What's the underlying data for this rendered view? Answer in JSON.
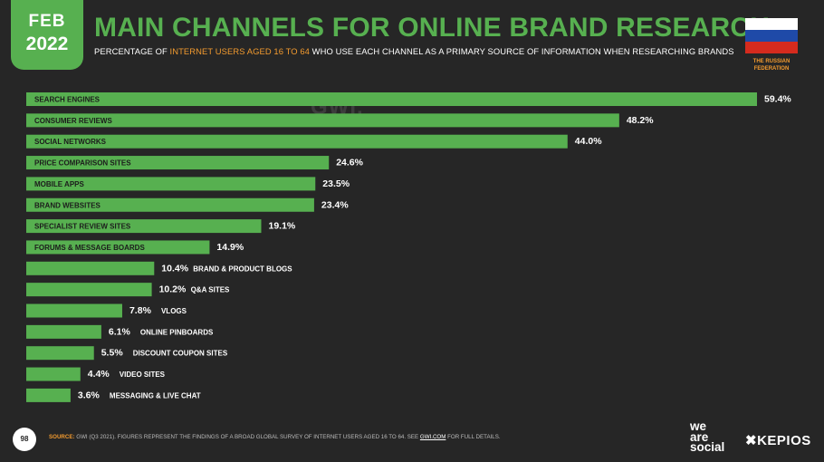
{
  "header": {
    "month": "FEB",
    "year": "2022",
    "title": "MAIN CHANNELS FOR ONLINE BRAND RESEARCH",
    "subtitle_pre": "PERCENTAGE OF ",
    "subtitle_hl": "INTERNET USERS AGED 16 TO 64",
    "subtitle_post": " WHO USE EACH CHANNEL AS A PRIMARY SOURCE OF INFORMATION WHEN RESEARCHING BRANDS"
  },
  "country": {
    "line1": "THE RUSSIAN",
    "line2": "FEDERATION",
    "flag_colors": [
      "#ffffff",
      "#1f4aa8",
      "#d52b1e"
    ]
  },
  "watermark": "GWI.",
  "colors": {
    "bar": "#57b050",
    "background": "#262626",
    "accent": "#f39b2f"
  },
  "chart_data": {
    "type": "bar",
    "orientation": "horizontal",
    "categories": [
      "SEARCH ENGINES",
      "CONSUMER REVIEWS",
      "SOCIAL NETWORKS",
      "PRICE COMPARISON SITES",
      "MOBILE APPS",
      "BRAND WEBSITES",
      "SPECIALIST REVIEW SITES",
      "FORUMS & MESSAGE BOARDS",
      "BRAND & PRODUCT BLOGS",
      "Q&A SITES",
      "VLOGS",
      "ONLINE PINBOARDS",
      "DISCOUNT COUPON SITES",
      "VIDEO SITES",
      "MESSAGING & LIVE CHAT"
    ],
    "values": [
      59.4,
      48.2,
      44.0,
      24.6,
      23.5,
      23.4,
      19.1,
      14.9,
      10.4,
      10.2,
      7.8,
      6.1,
      5.5,
      4.4,
      3.6
    ],
    "value_labels": [
      "59.4%",
      "48.2%",
      "44.0%",
      "24.6%",
      "23.5%",
      "23.4%",
      "19.1%",
      "14.9%",
      "10.4%",
      "10.2%",
      "7.8%",
      "6.1%",
      "5.5%",
      "4.4%",
      "3.6%"
    ],
    "title": "MAIN CHANNELS FOR ONLINE BRAND RESEARCH",
    "xlabel": "",
    "ylabel": "",
    "unit": "%"
  },
  "footer": {
    "page_number": "98",
    "source_label": "SOURCE:",
    "source_text": " GWI (Q3 2021). FIGURES REPRESENT THE FINDINGS OF A BROAD GLOBAL SURVEY OF INTERNET USERS AGED 16 TO 64. SEE ",
    "source_link": "GWI.COM",
    "source_end": " FOR FULL DETAILS.",
    "brand1_line1": "we",
    "brand1_line2": "are",
    "brand1_line3": "social",
    "brand2": "KEPIOS"
  }
}
